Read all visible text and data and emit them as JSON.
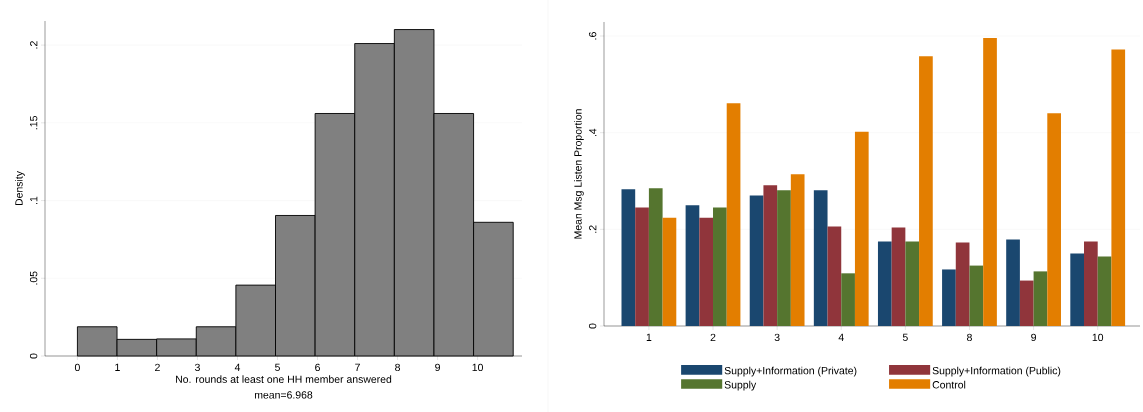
{
  "chart_data": [
    {
      "type": "histogram",
      "xlabel": "No. rounds at least one HH member answered",
      "ylabel": "Density",
      "annotations": [
        "mean=6.968"
      ],
      "bins": [
        0,
        0.99,
        1.98,
        2.97,
        3.96,
        4.95,
        5.94,
        6.93,
        7.92,
        8.91,
        9.9,
        10.89
      ],
      "values": [
        0.0188,
        0.0107,
        0.011,
        0.0188,
        0.0456,
        0.0904,
        0.156,
        0.201,
        0.21,
        0.156,
        0.086
      ],
      "color": "#808080",
      "xlim": [
        -0.81,
        11.11
      ],
      "xticks": [
        0,
        1,
        2,
        3,
        4,
        5,
        6,
        7,
        8,
        9,
        10
      ],
      "ylim": [
        0,
        0.2155
      ],
      "yticks": [
        0,
        {
          "value": 0.05,
          "label": ".05"
        },
        {
          "value": 0.1,
          "label": ".1"
        },
        {
          "value": 0.15,
          "label": ".15"
        },
        {
          "value": 0.2,
          "label": ".2"
        }
      ],
      "grid": "y"
    },
    {
      "type": "bar",
      "ylabel": "Mean Msg Listen Proportion",
      "categories": [
        "1",
        "2",
        "3",
        "4",
        "5",
        "8",
        "9",
        "10"
      ],
      "series": [
        {
          "name": "Supply+Information (Private)",
          "color": "#1a476f",
          "values": [
            0.283,
            0.25,
            0.27,
            0.281,
            0.175,
            0.117,
            0.179,
            0.15
          ]
        },
        {
          "name": "Supply+Information (Public)",
          "color": "#90353b",
          "values": [
            0.245,
            0.224,
            0.291,
            0.206,
            0.204,
            0.173,
            0.094,
            0.175
          ]
        },
        {
          "name": "Supply",
          "color": "#55752f",
          "values": [
            0.285,
            0.245,
            0.281,
            0.109,
            0.175,
            0.125,
            0.113,
            0.144
          ]
        },
        {
          "name": "Control",
          "color": "#e37e00",
          "values": [
            0.224,
            0.461,
            0.314,
            0.402,
            0.558,
            0.596,
            0.44,
            0.572
          ]
        }
      ],
      "ylim": [
        0,
        0.629
      ],
      "yticks": [
        0,
        {
          "value": 0.2,
          "label": ".2"
        },
        {
          "value": 0.4,
          "label": ".4"
        },
        {
          "value": 0.6,
          "label": ".6"
        }
      ],
      "grid": "y",
      "legend": "bottom"
    }
  ]
}
